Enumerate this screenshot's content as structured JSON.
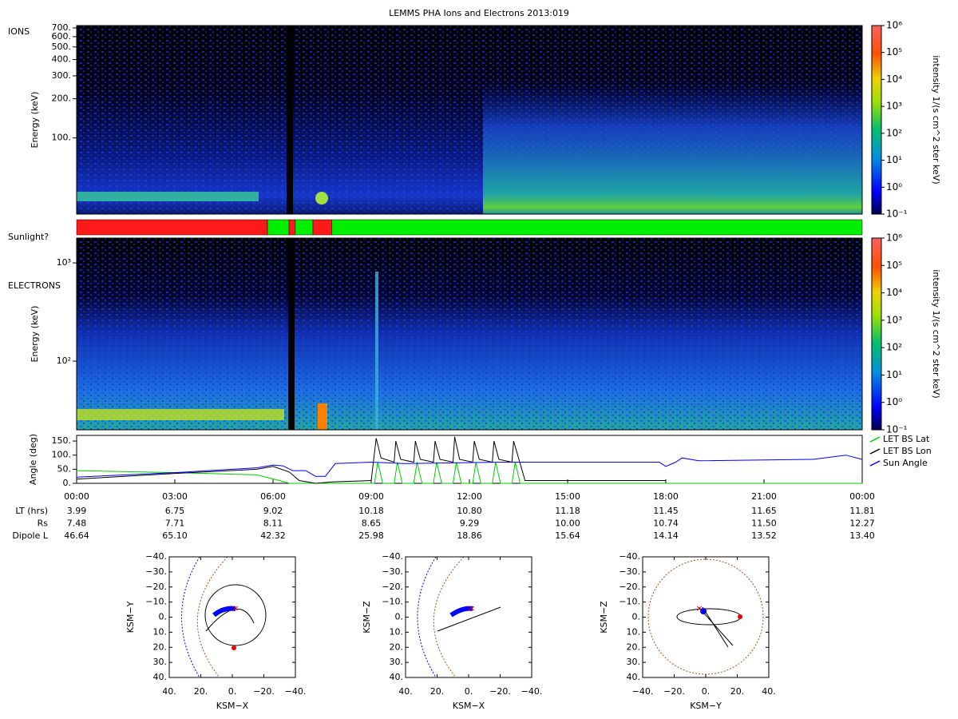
{
  "title": "LEMMS PHA Ions and Electrons  2013:019",
  "colorbar": {
    "label": "intensity 1/(s cm^2 ster keV)",
    "clim": [
      0.1,
      1000000
    ],
    "ticks": [
      {
        "value": 0.1,
        "label": "10⁻¹"
      },
      {
        "value": 1,
        "label": "10⁰"
      },
      {
        "value": 10,
        "label": "10¹"
      },
      {
        "value": 100,
        "label": "10²"
      },
      {
        "value": 1000,
        "label": "10³"
      },
      {
        "value": 10000,
        "label": "10⁴"
      },
      {
        "value": 100000,
        "label": "10⁵"
      },
      {
        "value": 1000000,
        "label": "10⁶"
      }
    ]
  },
  "ions": {
    "label": "IONS",
    "ylabel": "Energy (keV)",
    "ylim": [
      26,
      730
    ],
    "yticks": [
      {
        "value": 100,
        "label": "100."
      },
      {
        "value": 200,
        "label": "200."
      },
      {
        "value": 300,
        "label": "300."
      },
      {
        "value": 400,
        "label": "400."
      },
      {
        "value": 500,
        "label": "500."
      },
      {
        "value": 600,
        "label": "600."
      },
      {
        "value": 700,
        "label": "700."
      }
    ]
  },
  "sunlight": {
    "label": "Sunlight?",
    "segments": [
      {
        "start": 0,
        "end": 5.83,
        "color": "#ff1a1a"
      },
      {
        "start": 5.83,
        "end": 6.49,
        "color": "#00ee00"
      },
      {
        "start": 6.49,
        "end": 6.68,
        "color": "#ff1a1a"
      },
      {
        "start": 6.68,
        "end": 7.22,
        "color": "#00ee00"
      },
      {
        "start": 7.22,
        "end": 7.8,
        "color": "#ff1a1a"
      },
      {
        "start": 7.8,
        "end": 24,
        "color": "#00ee00"
      }
    ]
  },
  "electrons": {
    "label": "ELECTRONS",
    "ylabel": "Energy (keV)",
    "ylim": [
      20,
      1790
    ],
    "yticks": [
      {
        "value": 100,
        "label": "10²"
      },
      {
        "value": 1000,
        "label": "10³"
      }
    ]
  },
  "angle": {
    "ylabel": "Angle (deg)",
    "ylim": [
      0,
      170
    ],
    "yticks": [
      {
        "value": 0,
        "label": "0."
      },
      {
        "value": 50,
        "label": "50."
      },
      {
        "value": 100,
        "label": "100."
      },
      {
        "value": 150,
        "label": "150."
      }
    ],
    "xlim": [
      0,
      24
    ],
    "xticks": [
      {
        "value": 0,
        "label": "00:00"
      },
      {
        "value": 3,
        "label": "03:00"
      },
      {
        "value": 6,
        "label": "06:00"
      },
      {
        "value": 9,
        "label": "09:00"
      },
      {
        "value": 12,
        "label": "12:00"
      },
      {
        "value": 15,
        "label": "15:00"
      },
      {
        "value": 18,
        "label": "18:00"
      },
      {
        "value": 21,
        "label": "21:00"
      },
      {
        "value": 24,
        "label": "00:00"
      }
    ],
    "series": [
      {
        "name": "LET BS Lat",
        "color": "#00cc00",
        "x": [
          0,
          3,
          5.5,
          6.2,
          6.5,
          9.1,
          9.2,
          9.35,
          9.7,
          9.8,
          9.95,
          10.3,
          10.4,
          10.55,
          10.9,
          11,
          11.15,
          11.5,
          11.6,
          11.75,
          12.1,
          12.2,
          12.35,
          12.7,
          12.8,
          12.95,
          13.3,
          13.4,
          13.55,
          24
        ],
        "values": [
          45,
          38,
          30,
          10,
          0,
          0,
          75,
          0,
          0,
          75,
          0,
          0,
          75,
          0,
          0,
          75,
          0,
          0,
          75,
          0,
          0,
          75,
          0,
          0,
          75,
          0,
          0,
          75,
          0,
          0
        ]
      },
      {
        "name": "LET BS Lon",
        "color": "#000000",
        "x": [
          0,
          3,
          5.5,
          6,
          6.5,
          6.8,
          7.3,
          7.8,
          9,
          9.15,
          9.3,
          9.7,
          9.75,
          9.9,
          10.3,
          10.35,
          10.5,
          10.9,
          10.95,
          11.1,
          11.5,
          11.55,
          11.7,
          12.1,
          12.15,
          12.3,
          12.7,
          12.75,
          12.9,
          13.3,
          13.35,
          13.7,
          18
        ],
        "values": [
          15,
          35,
          50,
          60,
          40,
          10,
          0,
          5,
          10,
          160,
          90,
          75,
          150,
          85,
          75,
          150,
          85,
          75,
          150,
          85,
          75,
          165,
          85,
          75,
          150,
          85,
          75,
          150,
          85,
          75,
          150,
          10,
          10
        ]
      },
      {
        "name": "Sun Angle",
        "color": "#0000ff",
        "x": [
          0,
          3,
          5.5,
          6,
          6.3,
          6.6,
          7,
          7.3,
          7.6,
          7.9,
          9,
          10,
          13,
          17.8,
          18,
          18.3,
          18.5,
          19,
          22.5,
          23.5,
          24
        ],
        "values": [
          22,
          38,
          55,
          65,
          62,
          45,
          45,
          25,
          25,
          70,
          75,
          70,
          75,
          75,
          60,
          75,
          90,
          80,
          85,
          100,
          85
        ]
      }
    ]
  },
  "table": {
    "rows": [
      {
        "label": "LT (hrs)",
        "values": [
          "3.99",
          "6.75",
          "9.02",
          "10.18",
          "10.80",
          "11.18",
          "11.45",
          "11.65",
          "11.81"
        ]
      },
      {
        "label": "Rs",
        "values": [
          "7.48",
          "7.71",
          "8.11",
          "8.65",
          "9.29",
          "10.00",
          "10.74",
          "11.50",
          "12.27"
        ]
      },
      {
        "label": "Dipole L",
        "values": [
          "46.64",
          "65.10",
          "42.32",
          "25.98",
          "18.86",
          "15.64",
          "14.14",
          "13.52",
          "13.40"
        ]
      }
    ]
  },
  "orbits": [
    {
      "xlabel": "KSM−X",
      "ylabel": "KSM−Y",
      "xlim": [
        40,
        -40
      ],
      "ylim": [
        -40,
        40
      ],
      "xticks": [
        {
          "value": 40,
          "label": "40."
        },
        {
          "value": 20,
          "label": "20."
        },
        {
          "value": 0,
          "label": "0."
        },
        {
          "value": -20,
          "label": "−20."
        },
        {
          "value": -40,
          "label": "−40."
        }
      ],
      "yticks": [
        {
          "value": -40,
          "label": "−40."
        },
        {
          "value": -30,
          "label": "−30."
        },
        {
          "value": -20,
          "label": "−20."
        },
        {
          "value": -10,
          "label": "−10."
        },
        {
          "value": 0,
          "label": "0."
        },
        {
          "value": 10,
          "label": "10."
        },
        {
          "value": 20,
          "label": "20."
        },
        {
          "value": 30,
          "label": "30."
        },
        {
          "value": 40,
          "label": "40."
        }
      ]
    },
    {
      "xlabel": "KSM−X",
      "ylabel": "KSM−Z",
      "xlim": [
        40,
        -40
      ],
      "ylim": [
        -40,
        40
      ],
      "xticks": [
        {
          "value": 40,
          "label": "40."
        },
        {
          "value": 20,
          "label": "20."
        },
        {
          "value": 0,
          "label": "0."
        },
        {
          "value": -20,
          "label": "−20."
        },
        {
          "value": -40,
          "label": "−40."
        }
      ],
      "yticks": [
        {
          "value": -40,
          "label": "−40."
        },
        {
          "value": -30,
          "label": "−30."
        },
        {
          "value": -20,
          "label": "−20."
        },
        {
          "value": -10,
          "label": "−10."
        },
        {
          "value": 0,
          "label": "0."
        },
        {
          "value": 10,
          "label": "10."
        },
        {
          "value": 20,
          "label": "20."
        },
        {
          "value": 30,
          "label": "30."
        },
        {
          "value": 40,
          "label": "40."
        }
      ]
    },
    {
      "xlabel": "KSM−Y",
      "ylabel": "KSM−Z",
      "xlim": [
        -40,
        40
      ],
      "ylim": [
        -40,
        40
      ],
      "xticks": [
        {
          "value": -40,
          "label": "−40."
        },
        {
          "value": -20,
          "label": "−20."
        },
        {
          "value": 0,
          "label": "0."
        },
        {
          "value": 20,
          "label": "20."
        },
        {
          "value": 40,
          "label": "40."
        }
      ],
      "yticks": [
        {
          "value": -40,
          "label": "−40."
        },
        {
          "value": -30,
          "label": "−30."
        },
        {
          "value": -20,
          "label": "−20."
        },
        {
          "value": -10,
          "label": "−10."
        },
        {
          "value": 0,
          "label": "0."
        },
        {
          "value": 10,
          "label": "10."
        },
        {
          "value": 20,
          "label": "20."
        },
        {
          "value": 30,
          "label": "30."
        },
        {
          "value": 40,
          "label": "40."
        }
      ]
    }
  ]
}
